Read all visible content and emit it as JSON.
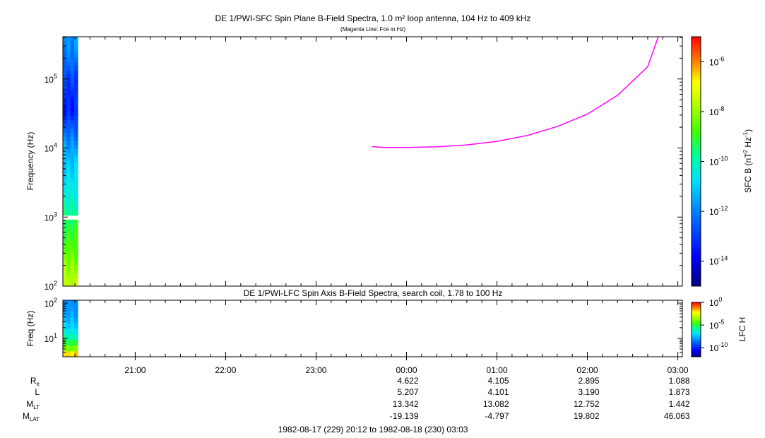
{
  "chart_data": [
    {
      "type": "heatmap",
      "title": "DE 1/PWI-SFC  Spin Plane B-Field Spectra, 1.0 m² loop antenna, 104 Hz to 409 kHz",
      "subtitle": "(Magenta Line: Fce in Hz)",
      "ylabel": "Frequency (Hz)",
      "y_scale": "log",
      "ylim": [
        100,
        409000
      ],
      "y_ticks": [
        {
          "value": 100,
          "base": "10",
          "exp": "2"
        },
        {
          "value": 1000,
          "base": "10",
          "exp": "3"
        },
        {
          "value": 10000,
          "base": "10",
          "exp": "4"
        },
        {
          "value": 100000,
          "base": "10",
          "exp": "5"
        }
      ],
      "colorbar": {
        "label_main": "SFC B (nT",
        "label_sup1": "2",
        "label_mid": " Hz",
        "label_sup2": "-1",
        "label_end": ")",
        "scale": "log",
        "range_exp": [
          -15,
          -5
        ],
        "ticks": [
          {
            "exp": -6,
            "base": "10",
            "label": "-6"
          },
          {
            "exp": -8,
            "base": "10",
            "label": "-8"
          },
          {
            "exp": -10,
            "base": "10",
            "label": "-10"
          },
          {
            "exp": -12,
            "base": "10",
            "label": "-12"
          },
          {
            "exp": -14,
            "base": "10",
            "label": "-14"
          }
        ]
      },
      "data_time_range": [
        "20:12",
        "20:22"
      ],
      "spectrum_log10": [
        {
          "f": 100,
          "v": -7.6
        },
        {
          "f": 150,
          "v": -7.9
        },
        {
          "f": 230,
          "v": -8.2
        },
        {
          "f": 350,
          "v": -8.6
        },
        {
          "f": 550,
          "v": -9.0
        },
        {
          "f": 850,
          "v": -9.4
        },
        {
          "f": 1300,
          "v": -9.9
        },
        {
          "f": 2000,
          "v": -10.3
        },
        {
          "f": 3000,
          "v": -10.6
        },
        {
          "f": 5000,
          "v": -11.0
        },
        {
          "f": 8000,
          "v": -11.4
        },
        {
          "f": 12000,
          "v": -11.8
        },
        {
          "f": 20000,
          "v": -12.5
        },
        {
          "f": 35000,
          "v": -13.4
        },
        {
          "f": 60000,
          "v": -13.2
        },
        {
          "f": 110000,
          "v": -12.8
        },
        {
          "f": 180000,
          "v": -12.2
        },
        {
          "f": 300000,
          "v": -11.9
        },
        {
          "f": 409000,
          "v": -11.8
        }
      ],
      "gap_hz": [
        900,
        1100
      ],
      "fce_line": {
        "name": "Fce in Hz",
        "color": "#ff00ff",
        "points": [
          {
            "t": "23:37",
            "f": 10500
          },
          {
            "t": "23:45",
            "f": 10200
          },
          {
            "t": "00:00",
            "f": 10200
          },
          {
            "t": "00:20",
            "f": 10400
          },
          {
            "t": "00:40",
            "f": 11100
          },
          {
            "t": "01:00",
            "f": 12500
          },
          {
            "t": "01:20",
            "f": 15200
          },
          {
            "t": "01:40",
            "f": 20500
          },
          {
            "t": "02:00",
            "f": 31000
          },
          {
            "t": "02:20",
            "f": 58000
          },
          {
            "t": "02:40",
            "f": 150000
          },
          {
            "t": "02:47",
            "f": 409000
          }
        ]
      }
    },
    {
      "type": "heatmap",
      "title": "DE 1/PWI-LFC  Spin Axis B-Field Spectra, search coil, 1.78 to 100 Hz",
      "ylabel": "Freq (Hz)",
      "y_scale": "log",
      "ylim": [
        3,
        120
      ],
      "y_ticks": [
        {
          "value": 10,
          "base": "10",
          "exp": "1"
        },
        {
          "value": 100,
          "base": "10",
          "exp": "2"
        }
      ],
      "colorbar": {
        "label": "LFC H",
        "scale": "log",
        "range_exp": [
          -12,
          0
        ],
        "ticks": [
          {
            "exp": 0,
            "base": "10",
            "label": "0"
          },
          {
            "exp": -5,
            "base": "10",
            "label": "-5"
          },
          {
            "exp": -10,
            "base": "10",
            "label": "-10"
          }
        ]
      },
      "data_time_range": [
        "20:12",
        "20:22"
      ],
      "spectrum_log10": [
        {
          "f": 3,
          "v": -1.0
        },
        {
          "f": 4,
          "v": -2.5
        },
        {
          "f": 5.5,
          "v": -4.2
        },
        {
          "f": 8,
          "v": -5.2
        },
        {
          "f": 12,
          "v": -6.2
        },
        {
          "f": 20,
          "v": -7.0
        },
        {
          "f": 35,
          "v": -7.6
        },
        {
          "f": 60,
          "v": -8.0
        },
        {
          "f": 120,
          "v": -8.2
        }
      ]
    }
  ],
  "time_axis": {
    "start": "20:12",
    "end": "03:03",
    "tick_labels": [
      "21:00",
      "22:00",
      "23:00",
      "00:00",
      "01:00",
      "02:00",
      "03:00"
    ],
    "minor_every_minutes": 10
  },
  "ephemeris": {
    "rows": [
      {
        "label": "R",
        "sub": "e",
        "values": [
          "",
          "",
          "",
          "4.622",
          "4.105",
          "2.895",
          "1.088"
        ]
      },
      {
        "label": "L",
        "sub": "",
        "values": [
          "",
          "",
          "",
          "5.207",
          "4.101",
          "3.190",
          "1.873"
        ]
      },
      {
        "label": "M",
        "sub": "LT",
        "values": [
          "",
          "",
          "",
          "13.342",
          "13.082",
          "12.752",
          "1.442"
        ]
      },
      {
        "label": "M",
        "sub": "LAT",
        "values": [
          "",
          "",
          "",
          "-19.139",
          "-4.797",
          "19.802",
          "46.063"
        ]
      }
    ]
  },
  "footer": "1982-08-17 (229) 20:12 to 1982-08-18 (230) 03:03"
}
